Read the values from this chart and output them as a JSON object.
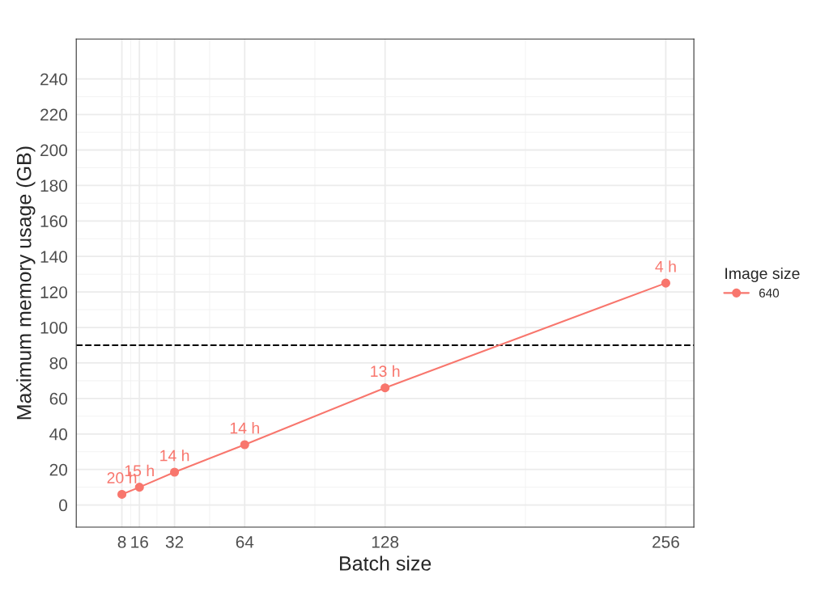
{
  "chart_data": {
    "type": "line",
    "xlabel": "Batch size",
    "ylabel": "Maximum memory usage (GB)",
    "legend_title": "Image size",
    "x": [
      8,
      16,
      32,
      64,
      128,
      256
    ],
    "series": [
      {
        "name": "640",
        "color": "#f8766d",
        "values": [
          6,
          10,
          18.5,
          34,
          66,
          125
        ]
      }
    ],
    "xlim": [
      -12.8,
      268.8
    ],
    "xticks": [
      8,
      16,
      32,
      64,
      128,
      256
    ],
    "ylim": [
      -12.5,
      262.5
    ],
    "yticks": [
      0,
      20,
      40,
      60,
      80,
      100,
      120,
      140,
      160,
      180,
      200,
      220,
      240
    ],
    "ref_lines": [
      {
        "axis": "y",
        "value": 90,
        "color": "#000000",
        "line_style": "dashed"
      }
    ],
    "annotations": [
      {
        "text": "20 h",
        "x": 8,
        "y": 6
      },
      {
        "text": "15 h",
        "x": 16,
        "y": 10
      },
      {
        "text": "14 h",
        "x": 32,
        "y": 18.5
      },
      {
        "text": "14 h",
        "x": 64,
        "y": 34
      },
      {
        "text": "13 h",
        "x": 128,
        "y": 66
      },
      {
        "text": "4 h",
        "x": 256,
        "y": 125
      }
    ],
    "grid": true,
    "legend": "right",
    "marker": "circle",
    "line_style": "solid"
  }
}
